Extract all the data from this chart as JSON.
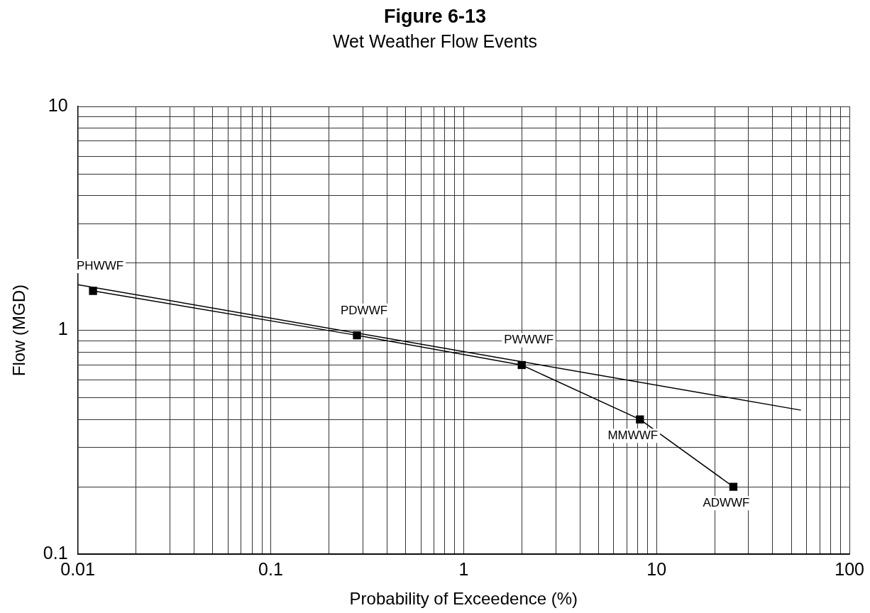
{
  "chart_data": {
    "type": "line",
    "title": "Figure 6-13",
    "subtitle": "Wet Weather Flow Events",
    "xlabel": "Probability of Exceedence (%)",
    "ylabel": "Flow (MGD)",
    "log": "xy",
    "grid": true,
    "legend": false,
    "xlim": [
      0.01,
      100
    ],
    "ylim": [
      0.1,
      10
    ],
    "xticks": [
      0.01,
      {
        "value": 0.02,
        "label": null
      },
      {
        "value": 0.03,
        "label": null
      },
      {
        "value": 0.04,
        "label": null
      },
      {
        "value": 0.05,
        "label": null
      },
      {
        "value": 0.06,
        "label": null
      },
      {
        "value": 0.07,
        "label": null
      },
      {
        "value": 0.08,
        "label": null
      },
      {
        "value": 0.09,
        "label": null
      },
      0.1,
      {
        "value": 0.2,
        "label": null
      },
      {
        "value": 0.3,
        "label": null
      },
      {
        "value": 0.4,
        "label": null
      },
      {
        "value": 0.5,
        "label": null
      },
      {
        "value": 0.6,
        "label": null
      },
      {
        "value": 0.7,
        "label": null
      },
      {
        "value": 0.8,
        "label": null
      },
      {
        "value": 0.9,
        "label": null
      },
      1,
      {
        "value": 2,
        "label": null
      },
      {
        "value": 3,
        "label": null
      },
      {
        "value": 4,
        "label": null
      },
      {
        "value": 5,
        "label": null
      },
      {
        "value": 6,
        "label": null
      },
      {
        "value": 7,
        "label": null
      },
      {
        "value": 8,
        "label": null
      },
      {
        "value": 9,
        "label": null
      },
      10,
      {
        "value": 20,
        "label": null
      },
      {
        "value": 30,
        "label": null
      },
      {
        "value": 40,
        "label": null
      },
      {
        "value": 50,
        "label": null
      },
      {
        "value": 60,
        "label": null
      },
      {
        "value": 70,
        "label": null
      },
      {
        "value": 80,
        "label": null
      },
      {
        "value": 90,
        "label": null
      },
      100
    ],
    "yticks": [
      0.1,
      {
        "value": 0.2,
        "label": null
      },
      {
        "value": 0.3,
        "label": null
      },
      {
        "value": 0.4,
        "label": null
      },
      {
        "value": 0.5,
        "label": null
      },
      {
        "value": 0.6,
        "label": null
      },
      {
        "value": 0.7,
        "label": null
      },
      {
        "value": 0.8,
        "label": null
      },
      {
        "value": 0.9,
        "label": null
      },
      1,
      {
        "value": 2,
        "label": null
      },
      {
        "value": 3,
        "label": null
      },
      {
        "value": 4,
        "label": null
      },
      {
        "value": 5,
        "label": null
      },
      {
        "value": 6,
        "label": null
      },
      {
        "value": 7,
        "label": null
      },
      {
        "value": 8,
        "label": null
      },
      {
        "value": 9,
        "label": null
      },
      10
    ],
    "series": [
      {
        "type": "line",
        "color": "#000000",
        "marker": "square",
        "x": [
          0.012,
          0.28,
          2,
          8.2,
          25
        ],
        "values": [
          1.5,
          0.95,
          0.7,
          0.4,
          0.2
        ]
      },
      {
        "type": "line",
        "color": "#000000",
        "marker": "none",
        "x": [
          0.01,
          56
        ],
        "values": [
          1.6,
          0.44
        ]
      }
    ],
    "annotations": [
      {
        "text": "PHWWF",
        "x": 0.012,
        "y": 1.5
      },
      {
        "text": "PDWWF",
        "x": 0.28,
        "y": 0.95
      },
      {
        "text": "PWWWF",
        "x": 2,
        "y": 0.7
      },
      {
        "text": "MMWWF",
        "x": 8.2,
        "y": 0.4
      },
      {
        "text": "ADWWF",
        "x": 25,
        "y": 0.2
      }
    ]
  }
}
